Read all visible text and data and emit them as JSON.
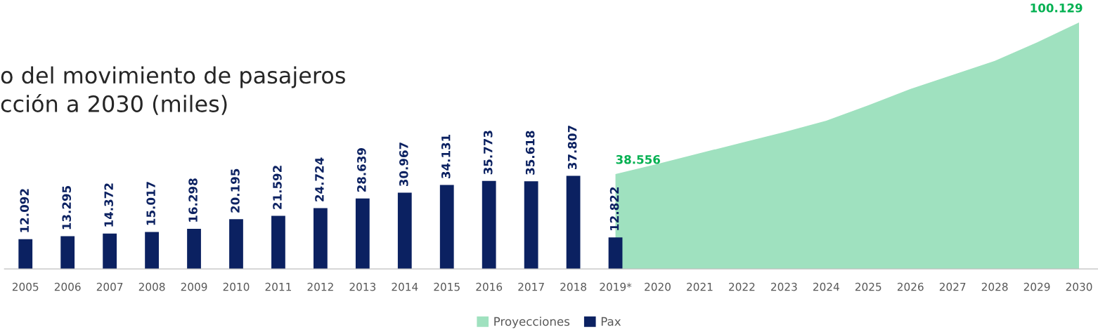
{
  "chart_data": {
    "type": "bar",
    "title": "o del movimiento de pasajeros\ncción a 2030 (miles)",
    "categories": [
      "2005",
      "2006",
      "2007",
      "2008",
      "2009",
      "2010",
      "2011",
      "2012",
      "2013",
      "2014",
      "2015",
      "2016",
      "2017",
      "2018",
      "2019*",
      "2020",
      "2021",
      "2022",
      "2023",
      "2024",
      "2025",
      "2026",
      "2027",
      "2028",
      "2029",
      "2030"
    ],
    "series": [
      {
        "name": "Proyecciones",
        "type": "area",
        "color": "#9fe1bf",
        "values": [
          null,
          null,
          null,
          null,
          null,
          null,
          null,
          null,
          null,
          null,
          null,
          null,
          null,
          null,
          38556,
          42700,
          47000,
          51300,
          55600,
          60200,
          66500,
          73100,
          78800,
          84500,
          92000,
          100129
        ],
        "value_labels": [
          null,
          null,
          null,
          null,
          null,
          null,
          null,
          null,
          null,
          null,
          null,
          null,
          null,
          null,
          "38.556",
          null,
          null,
          null,
          null,
          null,
          null,
          null,
          null,
          null,
          null,
          "100.129"
        ]
      },
      {
        "name": "Pax",
        "color": "#0b2161",
        "values": [
          12092,
          13295,
          14372,
          15017,
          16298,
          20195,
          21592,
          24724,
          28639,
          30967,
          34131,
          35773,
          35618,
          37807,
          12822,
          null,
          null,
          null,
          null,
          null,
          null,
          null,
          null,
          null,
          null,
          null
        ],
        "value_labels": [
          "12.092",
          "13.295",
          "14.372",
          "15.017",
          "16.298",
          "20.195",
          "21.592",
          "24.724",
          "28.639",
          "30.967",
          "34.131",
          "35.773",
          "35.618",
          "37.807",
          "12.822",
          null,
          null,
          null,
          null,
          null,
          null,
          null,
          null,
          null,
          null,
          null
        ]
      }
    ],
    "legend": "bottom",
    "grid": false
  }
}
